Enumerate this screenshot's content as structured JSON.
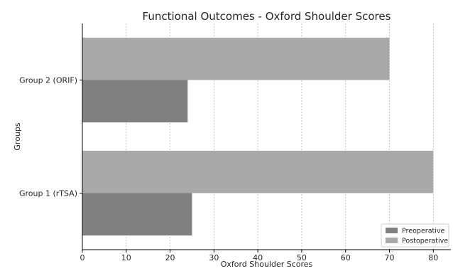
{
  "chart_data": {
    "type": "bar",
    "orientation": "horizontal",
    "title": "Functional Outcomes - Oxford Shoulder Scores",
    "xlabel": "Oxford Shoulder Scores",
    "ylabel": "Groups",
    "categories": [
      "Group 1 (rTSA)",
      "Group 2 (ORIF)"
    ],
    "series": [
      {
        "name": "Preoperative",
        "values": [
          25,
          24
        ],
        "color": "#808080"
      },
      {
        "name": "Postoperative",
        "values": [
          80,
          70
        ],
        "color": "#a9a9a9"
      }
    ],
    "xlim": [
      0,
      84
    ],
    "xticks": [
      0,
      10,
      20,
      30,
      40,
      50,
      60,
      70,
      80
    ],
    "grid": true,
    "legend_position": "bottom-right"
  }
}
